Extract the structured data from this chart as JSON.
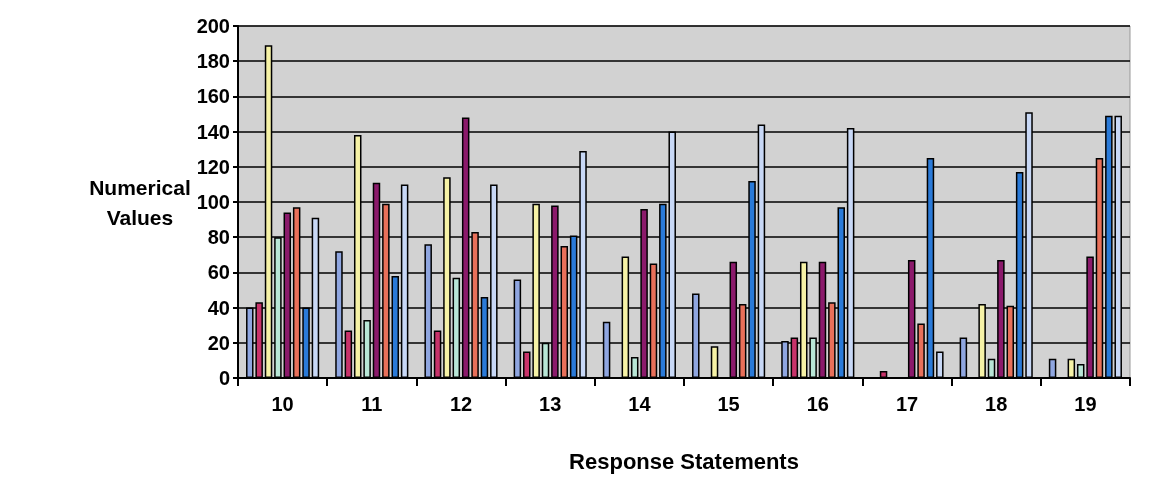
{
  "chart_data": {
    "type": "bar",
    "xlabel": "Response Statements",
    "ylabel": "Numerical\nValues",
    "categories": [
      "10",
      "11",
      "12",
      "13",
      "14",
      "15",
      "16",
      "17",
      "18",
      "19"
    ],
    "series": [
      {
        "color": "#8fa6e0",
        "values": [
          40,
          72,
          76,
          56,
          32,
          48,
          21,
          0,
          23,
          11
        ]
      },
      {
        "color": "#c8336a",
        "values": [
          43,
          27,
          27,
          15,
          0,
          0,
          23,
          4,
          0,
          0
        ]
      },
      {
        "color": "#f6f2a6",
        "values": [
          189,
          138,
          114,
          99,
          69,
          18,
          66,
          0,
          42,
          11
        ]
      },
      {
        "color": "#b8e6d6",
        "values": [
          80,
          33,
          57,
          20,
          12,
          0,
          23,
          0,
          11,
          8
        ]
      },
      {
        "color": "#8b1a6b",
        "values": [
          94,
          111,
          148,
          98,
          96,
          66,
          66,
          67,
          67,
          69
        ]
      },
      {
        "color": "#e8705a",
        "values": [
          97,
          99,
          83,
          75,
          65,
          42,
          43,
          31,
          41,
          125
        ]
      },
      {
        "color": "#2a7ad8",
        "values": [
          40,
          58,
          46,
          81,
          99,
          112,
          97,
          125,
          117,
          149
        ]
      },
      {
        "color": "#c8d8f6",
        "values": [
          91,
          110,
          110,
          129,
          140,
          144,
          142,
          15,
          151,
          149
        ]
      }
    ],
    "ylim": [
      0,
      200
    ],
    "yticks": [
      0,
      20,
      40,
      60,
      80,
      100,
      120,
      140,
      160,
      180,
      200
    ],
    "grid": "y"
  }
}
